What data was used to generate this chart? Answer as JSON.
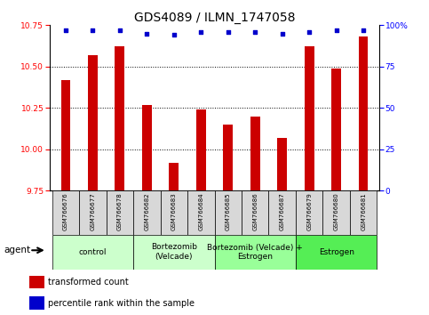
{
  "title": "GDS4089 / ILMN_1747058",
  "samples": [
    "GSM766676",
    "GSM766677",
    "GSM766678",
    "GSM766682",
    "GSM766683",
    "GSM766684",
    "GSM766685",
    "GSM766686",
    "GSM766687",
    "GSM766679",
    "GSM766680",
    "GSM766681"
  ],
  "bar_values": [
    10.42,
    10.57,
    10.62,
    10.27,
    9.92,
    10.24,
    10.15,
    10.2,
    10.07,
    10.62,
    10.49,
    10.68
  ],
  "dot_values": [
    97,
    97,
    97,
    95,
    94,
    96,
    96,
    96,
    95,
    96,
    97,
    97
  ],
  "bar_color": "#cc0000",
  "dot_color": "#0000cc",
  "ylim_left": [
    9.75,
    10.75
  ],
  "ylim_right": [
    0,
    100
  ],
  "yticks_left": [
    9.75,
    10.0,
    10.25,
    10.5,
    10.75
  ],
  "yticks_right": [
    0,
    25,
    50,
    75,
    100
  ],
  "grid_lines": [
    10.0,
    10.25,
    10.5
  ],
  "group_defs": [
    {
      "start": 0,
      "end": 2,
      "label": "control",
      "color": "#ccffcc"
    },
    {
      "start": 3,
      "end": 5,
      "label": "Bortezomib\n(Velcade)",
      "color": "#ccffcc"
    },
    {
      "start": 6,
      "end": 8,
      "label": "Bortezomib (Velcade) +\nEstrogen",
      "color": "#99ff99"
    },
    {
      "start": 9,
      "end": 11,
      "label": "Estrogen",
      "color": "#55ee55"
    }
  ],
  "agent_label": "agent",
  "legend_bar_label": "transformed count",
  "legend_dot_label": "percentile rank within the sample",
  "bar_width": 0.35,
  "title_fontsize": 10,
  "tick_fontsize": 6.5,
  "sample_fontsize": 5.0,
  "group_fontsize": 6.5
}
